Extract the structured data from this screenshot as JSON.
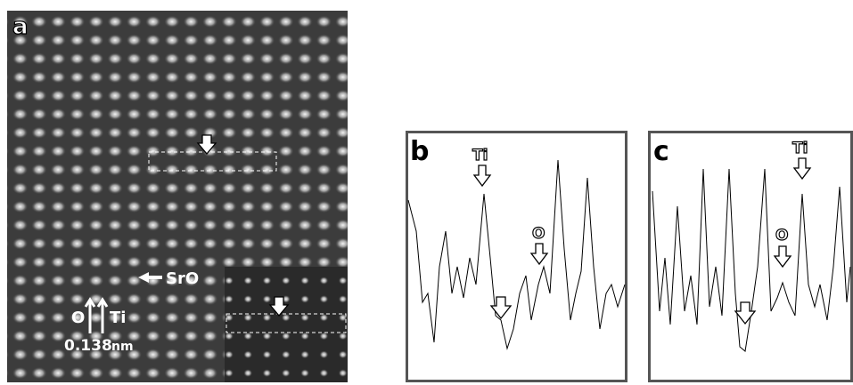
{
  "panel_a": {
    "label": "a",
    "sro": "SrO",
    "o": "O",
    "ti": "Ti",
    "distance": "0.138",
    "unit": "nm"
  },
  "panel_b": {
    "label": "b",
    "ti": "Ti",
    "o": "O"
  },
  "panel_c": {
    "label": "c",
    "ti": "Ti",
    "o": "O"
  }
}
